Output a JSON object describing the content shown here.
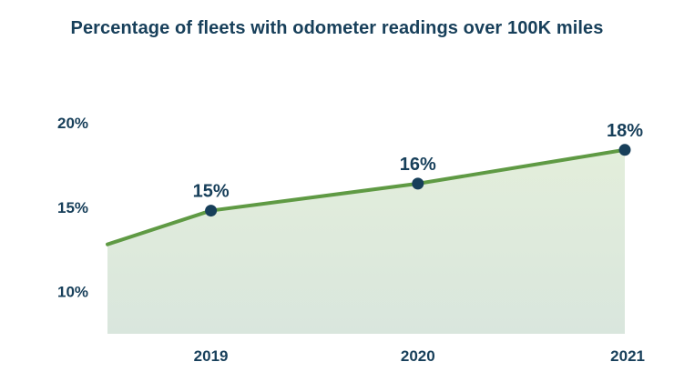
{
  "chart_data": {
    "type": "area",
    "title": "Percentage of fleets with odometer readings over 100K miles",
    "xlabel": "",
    "ylabel": "",
    "x": [
      2018.5,
      2019,
      2020,
      2021
    ],
    "categories": [
      "2019",
      "2020",
      "2021"
    ],
    "series": [
      {
        "values": [
          12.8,
          14.8,
          16.4,
          18.4
        ],
        "data_labels": [
          "",
          "15%",
          "16%",
          "18%"
        ]
      }
    ],
    "xlim": [
      2018.5,
      2021
    ],
    "ylim": [
      7.5,
      22
    ],
    "y_ticks": [
      10,
      15,
      20
    ],
    "y_tick_labels": [
      "10%",
      "15%",
      "20%"
    ],
    "grid": false,
    "legend": "none",
    "colors": {
      "title": "#173f5a",
      "text": "#173f5a",
      "line": "#5f9a44",
      "marker": "#173f5a",
      "fill_top": "#e3eedb",
      "fill_bottom": "#d9e6dd"
    }
  }
}
